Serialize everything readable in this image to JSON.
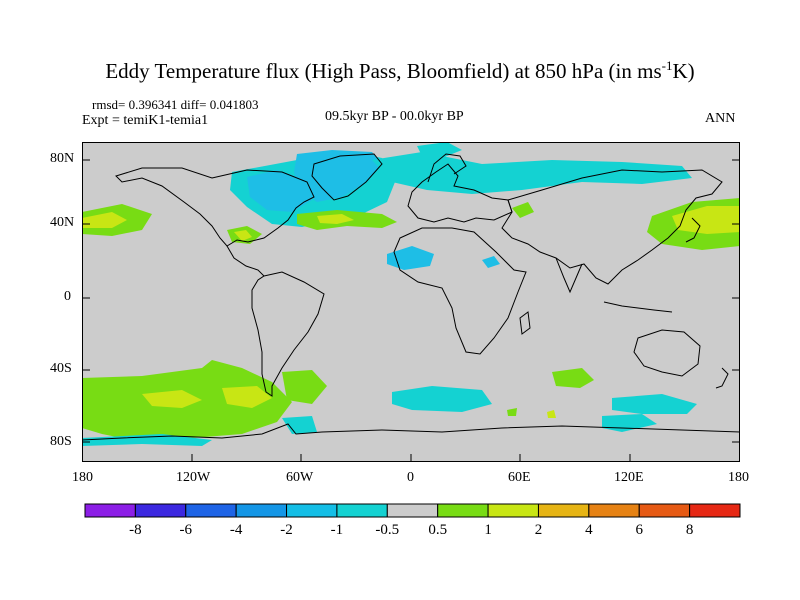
{
  "title": {
    "main": "Eddy Temperature flux (High Pass, Bloomfield) at 850 hPa (in ms",
    "sup": "-1",
    "tail": "K)"
  },
  "stats": "rmsd= 0.396341 diff= 0.041803",
  "experiment": "Expt = temiK1-temia1",
  "period": "09.5kyr BP - 00.0kyr BP",
  "season": "ANN",
  "map": {
    "lat_labels": [
      "80N",
      "40N",
      "0",
      "40S",
      "80S"
    ],
    "lon_labels": [
      "180",
      "120W",
      "60W",
      "0",
      "60E",
      "120E",
      "180"
    ]
  },
  "colorbar": {
    "labels": [
      "-8",
      "-6",
      "-4",
      "-2",
      "-1",
      "-0.5",
      "0.5",
      "1",
      "2",
      "4",
      "6",
      "8"
    ],
    "colors": [
      "#8c1ee6",
      "#3c28e0",
      "#1e64e6",
      "#1496e6",
      "#14bee6",
      "#14d2d2",
      "#cccccc",
      "#78dc14",
      "#c8e614",
      "#e6b414",
      "#e68214",
      "#e65a14",
      "#e62814"
    ]
  },
  "palette": {
    "ocean_gray": "#cccccc",
    "teal": "#14d2d2",
    "cyan_blue": "#1ebee6",
    "green": "#78dc14",
    "yellow_green": "#c8e614"
  }
}
